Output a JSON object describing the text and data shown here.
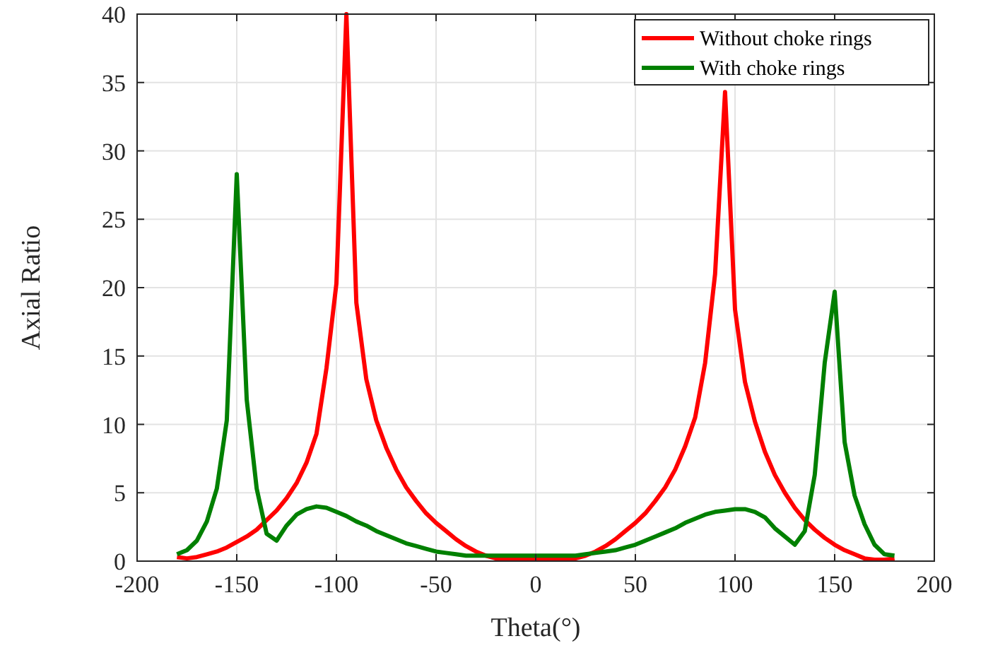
{
  "chart_data": {
    "type": "line",
    "xlabel": "Theta(°)",
    "ylabel": "Axial Ratio",
    "x": [
      -180,
      -175,
      -170,
      -165,
      -160,
      -155,
      -150,
      -145,
      -140,
      -135,
      -130,
      -125,
      -120,
      -115,
      -110,
      -105,
      -100,
      -95,
      -90,
      -85,
      -80,
      -75,
      -70,
      -65,
      -60,
      -55,
      -50,
      -45,
      -40,
      -35,
      -30,
      -25,
      -20,
      -15,
      -10,
      -5,
      0,
      5,
      10,
      15,
      20,
      25,
      30,
      35,
      40,
      45,
      50,
      55,
      60,
      65,
      70,
      75,
      80,
      85,
      90,
      95,
      100,
      105,
      110,
      115,
      120,
      125,
      130,
      135,
      140,
      145,
      150,
      155,
      160,
      165,
      170,
      175,
      180
    ],
    "series": [
      {
        "name": "Without choke rings",
        "color": "#ff0000",
        "values": [
          0.3,
          0.2,
          0.3,
          0.5,
          0.7,
          1.0,
          1.4,
          1.8,
          2.3,
          3.0,
          3.7,
          4.6,
          5.7,
          7.2,
          9.3,
          14.1,
          20.3,
          40,
          18.9,
          13.3,
          10.3,
          8.3,
          6.7,
          5.4,
          4.4,
          3.5,
          2.8,
          2.2,
          1.6,
          1.1,
          0.7,
          0.4,
          0.2,
          0.1,
          0.1,
          0.1,
          0.2,
          0.1,
          0.1,
          0.1,
          0.2,
          0.4,
          0.7,
          1.1,
          1.6,
          2.2,
          2.8,
          3.5,
          4.4,
          5.4,
          6.7,
          8.4,
          10.5,
          14.5,
          21,
          34.3,
          18.4,
          13.1,
          10.2,
          8.0,
          6.3,
          5.0,
          3.9,
          3.0,
          2.3,
          1.7,
          1.2,
          0.8,
          0.5,
          0.2,
          0.1,
          0.1,
          0.2
        ]
      },
      {
        "name": "With choke rings",
        "color": "#008000",
        "values": [
          0.5,
          0.8,
          1.5,
          2.9,
          5.3,
          10.3,
          28.3,
          11.8,
          5.3,
          2.0,
          1.5,
          2.6,
          3.4,
          3.8,
          4.0,
          3.9,
          3.6,
          3.3,
          2.9,
          2.6,
          2.2,
          1.9,
          1.6,
          1.3,
          1.1,
          0.9,
          0.7,
          0.6,
          0.5,
          0.4,
          0.4,
          0.4,
          0.4,
          0.4,
          0.4,
          0.4,
          0.4,
          0.4,
          0.4,
          0.4,
          0.4,
          0.5,
          0.6,
          0.7,
          0.8,
          1.0,
          1.2,
          1.5,
          1.8,
          2.1,
          2.4,
          2.8,
          3.1,
          3.4,
          3.6,
          3.7,
          3.8,
          3.8,
          3.6,
          3.2,
          2.4,
          1.8,
          1.2,
          2.2,
          6.3,
          14.5,
          19.7,
          8.7,
          4.8,
          2.7,
          1.2,
          0.5,
          0.4
        ]
      }
    ],
    "xlim": [
      -200,
      200
    ],
    "xticks": [
      -200,
      -150,
      -100,
      -50,
      0,
      50,
      100,
      150,
      200
    ],
    "ylim": [
      0,
      40
    ],
    "yticks": [
      0,
      5,
      10,
      15,
      20,
      25,
      30,
      35,
      40
    ],
    "grid": true,
    "legend": "top right",
    "marker": "none",
    "line_style": "solid"
  }
}
